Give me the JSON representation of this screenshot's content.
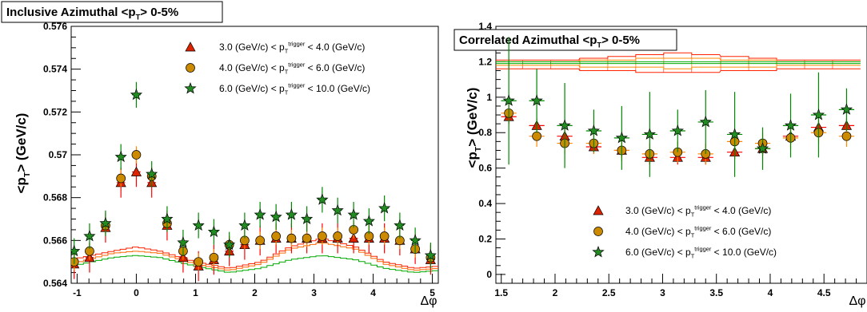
{
  "chart_data": [
    {
      "type": "scatter",
      "title": "Inclusive Azimuthal <p_T> 0-5%",
      "ylabel": "<p_T> (GeV/c)",
      "xlabel": "Δφ",
      "xlim": [
        -1.1,
        5.1
      ],
      "ylim": [
        0.564,
        0.576
      ],
      "xticks": [
        "-1",
        "0",
        "1",
        "2",
        "3",
        "4",
        "5"
      ],
      "yticks": [
        "0.564",
        "0.566",
        "0.568",
        "0.57",
        "0.572",
        "0.574",
        "0.576"
      ],
      "legend_position": "top-right",
      "series": [
        {
          "name": "3.0 (GeV/c) < p_T^trigger < 4.0 (GeV/c)",
          "marker": "triangle",
          "color": "#ff0000",
          "fill": "#dd2200",
          "x": [
            -1.05,
            -0.79,
            -0.52,
            -0.26,
            0.0,
            0.26,
            0.52,
            0.79,
            1.05,
            1.31,
            1.57,
            1.83,
            2.09,
            2.36,
            2.62,
            2.88,
            3.14,
            3.4,
            3.67,
            3.93,
            4.19,
            4.45,
            4.71,
            4.97
          ],
          "y": [
            0.5649,
            0.5652,
            0.5666,
            0.5687,
            0.5692,
            0.5687,
            0.5667,
            0.5652,
            0.5648,
            0.5651,
            0.5655,
            0.5658,
            0.566,
            0.5661,
            0.5661,
            0.5661,
            0.5661,
            0.5661,
            0.5661,
            0.5661,
            0.5661,
            0.566,
            0.5656,
            0.5651
          ]
        },
        {
          "name": "4.0 (GeV/c) < p_T^trigger < 6.0 (GeV/c)",
          "marker": "circle",
          "color": "#ff8800",
          "fill": "#cc8a00",
          "x": [
            -1.05,
            -0.79,
            -0.52,
            -0.26,
            0.0,
            0.26,
            0.52,
            0.79,
            1.05,
            1.31,
            1.57,
            1.83,
            2.09,
            2.36,
            2.62,
            2.88,
            3.14,
            3.4,
            3.67,
            3.93,
            4.19,
            4.45,
            4.71,
            4.97
          ],
          "y": [
            0.565,
            0.5655,
            0.5667,
            0.5689,
            0.57,
            0.569,
            0.5668,
            0.5655,
            0.565,
            0.5652,
            0.5658,
            0.566,
            0.566,
            0.5662,
            0.5661,
            0.5661,
            0.5662,
            0.5662,
            0.5665,
            0.5662,
            0.5662,
            0.566,
            0.5656,
            0.5652
          ]
        },
        {
          "name": "6.0 (GeV/c) < p_T^trigger < 10.0 (GeV/c)",
          "marker": "star",
          "color": "#008800",
          "fill": "#228b22",
          "x": [
            -1.05,
            -0.79,
            -0.52,
            -0.26,
            0.0,
            0.26,
            0.52,
            0.79,
            1.05,
            1.31,
            1.57,
            1.83,
            2.09,
            2.36,
            2.62,
            2.88,
            3.14,
            3.4,
            3.67,
            3.93,
            4.19,
            4.45,
            4.71,
            4.97
          ],
          "y": [
            0.5655,
            0.5662,
            0.5668,
            0.5699,
            0.5728,
            0.5691,
            0.567,
            0.5659,
            0.5667,
            0.5664,
            0.5658,
            0.5667,
            0.5672,
            0.5671,
            0.5672,
            0.567,
            0.5679,
            0.5674,
            0.5672,
            0.5669,
            0.5675,
            0.5667,
            0.566,
            0.5653
          ]
        }
      ],
      "curves": [
        {
          "color": "#ff2200",
          "x": [
            -1.1,
            -0.4,
            0.0,
            0.4,
            1.0,
            1.57,
            2.1,
            2.6,
            3.14,
            3.7,
            4.2,
            4.7,
            5.1
          ],
          "y": [
            0.5651,
            0.5655,
            0.5657,
            0.5655,
            0.565,
            0.5647,
            0.565,
            0.5657,
            0.5661,
            0.5657,
            0.565,
            0.5647,
            0.5648
          ]
        },
        {
          "color": "#ff6600",
          "x": [
            -1.1,
            -0.4,
            0.0,
            0.4,
            1.0,
            1.57,
            2.1,
            2.6,
            3.14,
            3.7,
            4.2,
            4.7,
            5.1
          ],
          "y": [
            0.5649,
            0.5654,
            0.5655,
            0.5654,
            0.5649,
            0.5646,
            0.5649,
            0.5656,
            0.5659,
            0.5656,
            0.5649,
            0.5646,
            0.5647
          ]
        },
        {
          "color": "#00aa00",
          "x": [
            -1.1,
            -0.4,
            0.0,
            0.4,
            1.0,
            1.57,
            2.1,
            2.6,
            3.14,
            3.7,
            4.2,
            4.7,
            5.1
          ],
          "y": [
            0.5648,
            0.5652,
            0.5653,
            0.5652,
            0.5648,
            0.5645,
            0.5647,
            0.5651,
            0.5653,
            0.5651,
            0.5647,
            0.5645,
            0.5646
          ]
        }
      ]
    },
    {
      "type": "scatter",
      "title": "Correlated Azimuthal <p_T> 0-5%",
      "ylabel": "<p_T> (GeV/c)",
      "xlabel": "Δφ",
      "xlim": [
        1.45,
        4.9
      ],
      "ylim": [
        -0.05,
        1.4
      ],
      "xticks": [
        "1.5",
        "2",
        "2.5",
        "3",
        "3.5",
        "4",
        "4.5"
      ],
      "yticks": [
        "0",
        "0.2",
        "0.4",
        "0.6",
        "0.8",
        "1",
        "1.2",
        "1.4"
      ],
      "legend_position": "bottom-right",
      "series": [
        {
          "name": "3.0 (GeV/c) < p_T^trigger < 4.0 (GeV/c)",
          "marker": "triangle",
          "color": "#ff0000",
          "fill": "#dd2200",
          "x": [
            1.57,
            1.83,
            2.09,
            2.36,
            2.62,
            2.88,
            3.14,
            3.4,
            3.67,
            3.93,
            4.19,
            4.45,
            4.71
          ],
          "y": [
            0.89,
            0.84,
            0.78,
            0.72,
            0.7,
            0.66,
            0.66,
            0.66,
            0.69,
            0.71,
            0.78,
            0.83,
            0.84
          ]
        },
        {
          "name": "4.0 (GeV/c) < p_T^trigger < 6.0 (GeV/c)",
          "marker": "circle",
          "color": "#ff8800",
          "fill": "#cc8a00",
          "x": [
            1.57,
            1.83,
            2.09,
            2.36,
            2.62,
            2.88,
            3.14,
            3.4,
            3.67,
            3.93,
            4.19,
            4.45,
            4.71
          ],
          "y": [
            0.91,
            0.78,
            0.74,
            0.74,
            0.7,
            0.68,
            0.69,
            0.68,
            0.75,
            0.74,
            0.77,
            0.8,
            0.78
          ]
        },
        {
          "name": "6.0 (GeV/c) < p_T^trigger < 10.0 (GeV/c)",
          "marker": "star",
          "color": "#008800",
          "fill": "#228b22",
          "x": [
            1.57,
            1.83,
            2.09,
            2.36,
            2.62,
            2.88,
            3.14,
            3.4,
            3.67,
            3.93,
            4.19,
            4.45,
            4.71
          ],
          "y": [
            0.98,
            0.98,
            0.84,
            0.81,
            0.77,
            0.79,
            0.81,
            0.86,
            0.79,
            0.71,
            0.84,
            0.9,
            0.93
          ]
        }
      ],
      "bands": [
        {
          "color": "#ff2200",
          "y": [
            1.21,
            1.21,
            1.21,
            1.22,
            1.23,
            1.24,
            1.25,
            1.24,
            1.23,
            1.22,
            1.21,
            1.21,
            1.21
          ],
          "y2": [
            1.16,
            1.16,
            1.16,
            1.15,
            1.15,
            1.14,
            1.14,
            1.14,
            1.15,
            1.15,
            1.16,
            1.16,
            1.16
          ]
        },
        {
          "color": "#ff8800",
          "y": [
            1.2,
            1.2,
            1.2,
            1.21,
            1.21,
            1.22,
            1.22,
            1.22,
            1.21,
            1.21,
            1.2,
            1.2,
            1.2
          ],
          "y2": [
            1.18,
            1.18,
            1.18,
            1.17,
            1.17,
            1.17,
            1.16,
            1.17,
            1.17,
            1.17,
            1.18,
            1.18,
            1.18
          ]
        },
        {
          "color": "#00aa00",
          "y": [
            1.2,
            1.2,
            1.2,
            1.2,
            1.2,
            1.2,
            1.2,
            1.2,
            1.2,
            1.2,
            1.2,
            1.2,
            1.2
          ],
          "y2": [
            1.19,
            1.19,
            1.19,
            1.19,
            1.19,
            1.19,
            1.19,
            1.19,
            1.19,
            1.19,
            1.19,
            1.19,
            1.19
          ]
        }
      ]
    }
  ]
}
